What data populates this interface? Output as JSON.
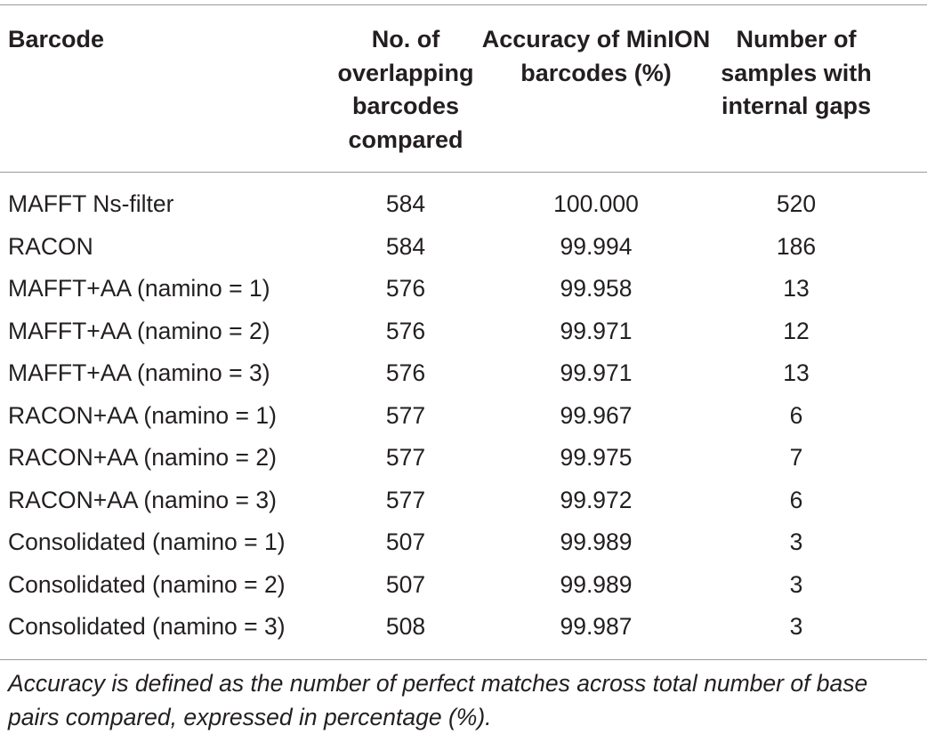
{
  "table": {
    "headers": [
      "Barcode",
      "No. of overlapping barcodes compared",
      "Accuracy of MinION barcodes (%)",
      "Number of samples with internal gaps"
    ],
    "rows": [
      [
        "MAFFT Ns-filter",
        "584",
        "100.000",
        "520"
      ],
      [
        "RACON",
        "584",
        "99.994",
        "186"
      ],
      [
        "MAFFT+AA (namino = 1)",
        "576",
        "99.958",
        "13"
      ],
      [
        "MAFFT+AA (namino = 2)",
        "576",
        "99.971",
        "12"
      ],
      [
        "MAFFT+AA (namino = 3)",
        "576",
        "99.971",
        "13"
      ],
      [
        "RACON+AA (namino = 1)",
        "577",
        "99.967",
        "6"
      ],
      [
        "RACON+AA (namino = 2)",
        "577",
        "99.975",
        "7"
      ],
      [
        "RACON+AA (namino = 3)",
        "577",
        "99.972",
        "6"
      ],
      [
        "Consolidated (namino = 1)",
        "507",
        "99.989",
        "3"
      ],
      [
        "Consolidated (namino = 2)",
        "507",
        "99.989",
        "3"
      ],
      [
        "Consolidated (namino = 3)",
        "508",
        "99.987",
        "3"
      ]
    ]
  },
  "footnote": "Accuracy is defined as the number of perfect matches across total number of base pairs compared, expressed in percentage (%)."
}
